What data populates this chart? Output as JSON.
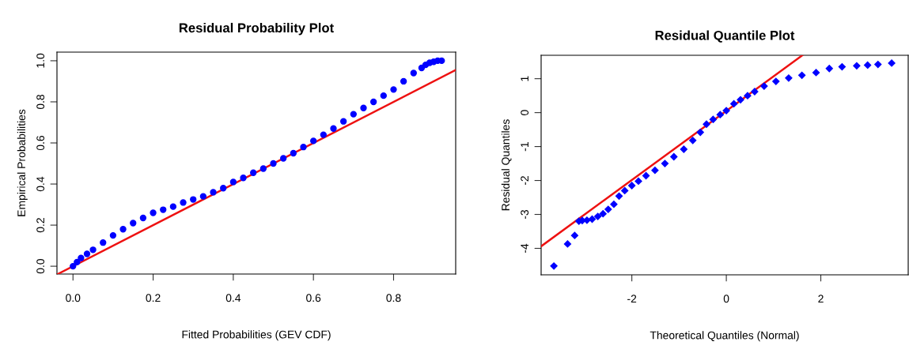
{
  "chart_data": [
    {
      "type": "scatter",
      "title": "Residual Probability Plot",
      "xlabel": "Fitted Probabilities (GEV CDF)",
      "ylabel": "Empirical Probabilities",
      "grid": false,
      "xlim": [
        -0.04,
        0.955
      ],
      "ylim": [
        -0.038,
        1.042
      ],
      "xticks": [
        {
          "value": 0,
          "label": "0.0"
        },
        {
          "value": 0.2,
          "label": "0.2"
        },
        {
          "value": 0.4,
          "label": "0.4"
        },
        {
          "value": 0.6,
          "label": "0.6"
        },
        {
          "value": 0.8,
          "label": "0.8"
        }
      ],
      "yticks": [
        {
          "value": 0,
          "label": "0.0"
        },
        {
          "value": 0.2,
          "label": "0.2"
        },
        {
          "value": 0.4,
          "label": "0.4"
        },
        {
          "value": 0.6,
          "label": "0.6"
        },
        {
          "value": 0.8,
          "label": "0.8"
        },
        {
          "value": 1,
          "label": "1.0"
        }
      ],
      "series": [
        {
          "marker": "circle",
          "color": "#0000ff",
          "x": [
            0,
            0.01,
            0.02,
            0.035,
            0.05,
            0.075,
            0.1,
            0.125,
            0.15,
            0.175,
            0.2,
            0.225,
            0.25,
            0.275,
            0.3,
            0.325,
            0.35,
            0.375,
            0.4,
            0.425,
            0.45,
            0.475,
            0.5,
            0.525,
            0.55,
            0.575,
            0.6,
            0.625,
            0.65,
            0.675,
            0.7,
            0.725,
            0.75,
            0.775,
            0.8,
            0.825,
            0.85,
            0.87,
            0.88,
            0.89,
            0.9,
            0.91,
            0.92
          ],
          "values": [
            0,
            0.02,
            0.04,
            0.06,
            0.08,
            0.115,
            0.15,
            0.18,
            0.21,
            0.235,
            0.26,
            0.275,
            0.29,
            0.31,
            0.325,
            0.34,
            0.36,
            0.38,
            0.41,
            0.43,
            0.455,
            0.475,
            0.5,
            0.525,
            0.55,
            0.58,
            0.61,
            0.64,
            0.67,
            0.705,
            0.74,
            0.77,
            0.8,
            0.83,
            0.86,
            0.9,
            0.94,
            0.965,
            0.98,
            0.99,
            0.995,
            1.0,
            1.0
          ]
        },
        {
          "type": "line",
          "marker": "none",
          "color": "#ee1111",
          "x": [
            -0.038,
            0.955
          ],
          "values": [
            -0.038,
            0.955
          ]
        }
      ]
    },
    {
      "type": "scatter",
      "title": "Residual Quantile Plot",
      "xlabel": "Theoretical Quantiles (Normal)",
      "ylabel": "Residual Quantiles",
      "grid": false,
      "xlim": [
        -3.92,
        3.85
      ],
      "ylim": [
        -4.78,
        1.69
      ],
      "xticks": [
        -2,
        0,
        2
      ],
      "yticks": [
        -4,
        -3,
        -2,
        -1,
        0,
        1
      ],
      "series": [
        {
          "marker": "diamond",
          "color": "#0000ff",
          "x": [
            -3.65,
            -3.36,
            -3.21,
            -3.12,
            -3.05,
            -2.95,
            -2.84,
            -2.72,
            -2.61,
            -2.5,
            -2.38,
            -2.27,
            -2.15,
            -2.0,
            -1.86,
            -1.7,
            -1.51,
            -1.3,
            -1.11,
            -0.9,
            -0.71,
            -0.55,
            -0.42,
            -0.28,
            -0.13,
            0.0,
            0.16,
            0.3,
            0.45,
            0.6,
            0.8,
            1.05,
            1.32,
            1.6,
            1.9,
            2.18,
            2.45,
            2.76,
            2.99,
            3.21,
            3.5
          ],
          "values": [
            -4.52,
            -3.87,
            -3.62,
            -3.2,
            -3.18,
            -3.17,
            -3.14,
            -3.06,
            -2.98,
            -2.85,
            -2.7,
            -2.46,
            -2.3,
            -2.15,
            -2.02,
            -1.86,
            -1.7,
            -1.5,
            -1.3,
            -1.08,
            -0.82,
            -0.58,
            -0.34,
            -0.2,
            -0.06,
            0.06,
            0.26,
            0.38,
            0.5,
            0.62,
            0.78,
            0.92,
            1.02,
            1.1,
            1.18,
            1.3,
            1.35,
            1.38,
            1.4,
            1.42,
            1.46
          ]
        },
        {
          "type": "line",
          "marker": "none",
          "color": "#ee1111",
          "x": [
            -3.92,
            1.61
          ],
          "values": [
            -3.94,
            1.69
          ]
        }
      ]
    }
  ]
}
